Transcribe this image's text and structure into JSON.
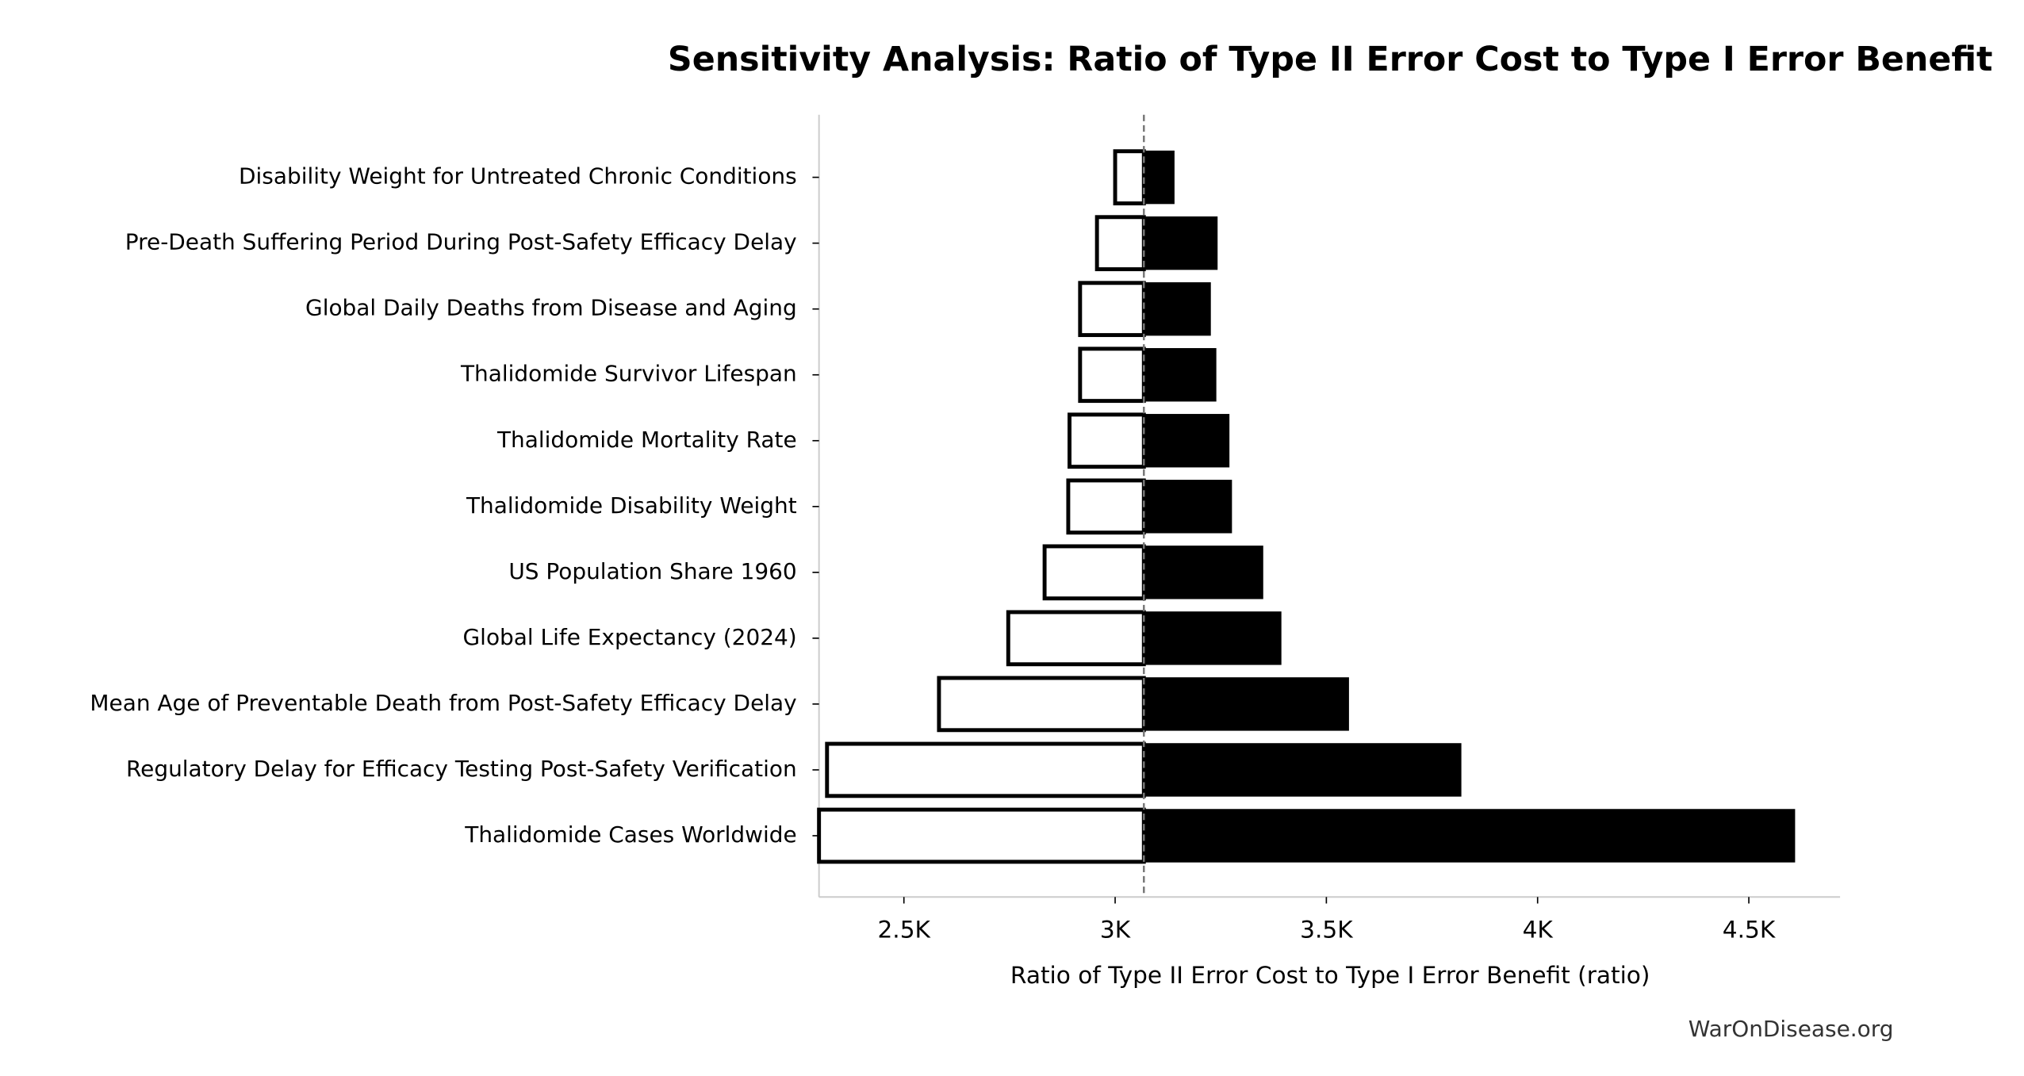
{
  "chart_data": {
    "type": "tornado",
    "title": "Sensitivity Analysis: Ratio of Type II Error Cost to Type I Error Benefit",
    "xlabel": "Ratio of Type II Error Cost to Type I Error Benefit (ratio)",
    "source": "WarOnDisease.org",
    "categories": [
      "Disability Weight for Untreated Chronic Conditions",
      "Pre-Death Suffering Period During Post-Safety Efficacy Delay",
      "Global Daily Deaths from Disease and Aging",
      "Thalidomide Survivor Lifespan",
      "Thalidomide Mortality Rate",
      "Thalidomide Disability Weight",
      "US Population Share 1960",
      "Global Life Expectancy (2024)",
      "Mean Age of Preventable Death from Post-Safety Efficacy Delay",
      "Regulatory Delay for Efficacy Testing Post-Safety Verification",
      "Thalidomide Cases Worldwide"
    ],
    "baseline": 3068,
    "low_values": [
      3000,
      2957,
      2917,
      2917,
      2892,
      2889,
      2833,
      2747,
      2583,
      2318,
      2299
    ],
    "high_values": [
      3139,
      3241,
      3225,
      3238,
      3269,
      3275,
      3349,
      3392,
      3552,
      3818,
      4608
    ],
    "low_color": "#ffffff",
    "high_color": "#000000",
    "xlim": [
      2299,
      4716
    ],
    "xticks": [
      {
        "value": 2500,
        "label": "2.5K"
      },
      {
        "value": 3000,
        "label": "3K"
      },
      {
        "value": 3500,
        "label": "3.5K"
      },
      {
        "value": 4000,
        "label": "4K"
      },
      {
        "value": 4500,
        "label": "4.5K"
      }
    ]
  }
}
